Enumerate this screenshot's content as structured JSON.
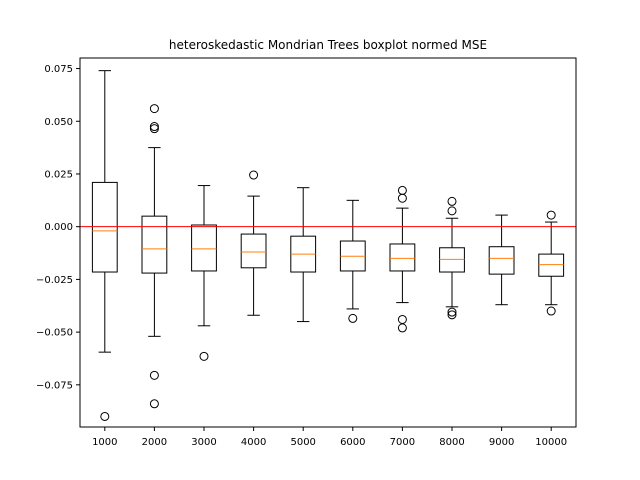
{
  "chart_data": {
    "type": "boxplot",
    "title": "heteroskedastic Mondrian Trees boxplot normed MSE",
    "xlabel": "",
    "ylabel": "",
    "ylim": [
      -0.095,
      0.08
    ],
    "yticks": [
      -0.075,
      -0.05,
      -0.025,
      0.0,
      0.025,
      0.05,
      0.075
    ],
    "ytick_labels": [
      "−0.075",
      "−0.050",
      "−0.025",
      "0.000",
      "0.025",
      "0.050",
      "0.075"
    ],
    "categories": [
      "1000",
      "2000",
      "3000",
      "4000",
      "5000",
      "6000",
      "7000",
      "8000",
      "9000",
      "10000"
    ],
    "reference_line": 0.0,
    "boxes": [
      {
        "whislo": -0.0595,
        "q1": -0.0215,
        "med": -0.002,
        "q3": 0.021,
        "whishi": 0.074,
        "fliers": [
          -0.09
        ]
      },
      {
        "whislo": -0.052,
        "q1": -0.022,
        "med": -0.0105,
        "q3": 0.005,
        "whishi": 0.0375,
        "fliers": [
          0.056,
          0.0475,
          0.0465,
          -0.0705,
          -0.084
        ]
      },
      {
        "whislo": -0.047,
        "q1": -0.021,
        "med": -0.0105,
        "q3": 0.0008,
        "whishi": 0.0195,
        "fliers": [
          -0.0615
        ]
      },
      {
        "whislo": -0.042,
        "q1": -0.0195,
        "med": -0.012,
        "q3": -0.0035,
        "whishi": 0.0145,
        "fliers": [
          0.0245
        ]
      },
      {
        "whislo": -0.045,
        "q1": -0.0215,
        "med": -0.013,
        "q3": -0.0045,
        "whishi": 0.0185,
        "fliers": []
      },
      {
        "whislo": -0.039,
        "q1": -0.021,
        "med": -0.014,
        "q3": -0.0068,
        "whishi": 0.0125,
        "fliers": [
          -0.0435
        ]
      },
      {
        "whislo": -0.036,
        "q1": -0.021,
        "med": -0.015,
        "q3": -0.0082,
        "whishi": 0.0088,
        "fliers": [
          0.0172,
          0.0135,
          -0.044,
          -0.048
        ]
      },
      {
        "whislo": -0.038,
        "q1": -0.0215,
        "med": -0.0155,
        "q3": -0.01,
        "whishi": 0.004,
        "fliers": [
          0.012,
          0.0075,
          -0.0405,
          -0.0418
        ]
      },
      {
        "whislo": -0.037,
        "q1": -0.0225,
        "med": -0.015,
        "q3": -0.0095,
        "whishi": 0.0055,
        "fliers": []
      },
      {
        "whislo": -0.037,
        "q1": -0.0235,
        "med": -0.018,
        "q3": -0.013,
        "whishi": 0.0022,
        "fliers": [
          0.0055,
          -0.04
        ]
      }
    ],
    "grid": false,
    "legend": "none",
    "colors": {
      "box": "#000000",
      "median": "#ff7f0e",
      "reference_line": "#ff0000",
      "background": "#ffffff"
    }
  }
}
